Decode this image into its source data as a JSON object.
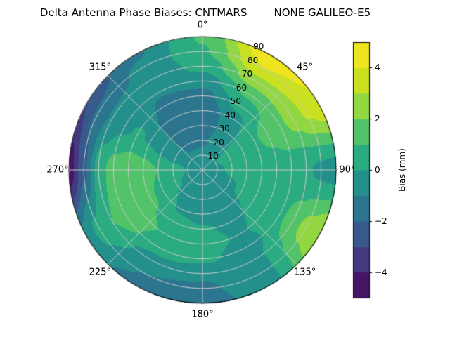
{
  "title": "Delta Antenna Phase Biases: CNTMARS        NONE GALILEO-E5",
  "chart_data": {
    "type": "heatmap",
    "projection": "polar",
    "title": "Delta Antenna Phase Biases: CNTMARS        NONE GALILEO-E5",
    "angular_ticks": [
      {
        "angle": 0,
        "label": "0°"
      },
      {
        "angle": 45,
        "label": "45°"
      },
      {
        "angle": 90,
        "label": "90°"
      },
      {
        "angle": 135,
        "label": "135°"
      },
      {
        "angle": 180,
        "label": "180°"
      },
      {
        "angle": 225,
        "label": "225°"
      },
      {
        "angle": 270,
        "label": "270°"
      },
      {
        "angle": 315,
        "label": "315°"
      }
    ],
    "radial_ticks": [
      10,
      20,
      30,
      40,
      50,
      60,
      70,
      80,
      90
    ],
    "radial_label_angle": 22.5,
    "colorbar": {
      "label": "Bias (mm)",
      "min": -5,
      "max": 5,
      "ticks": [
        -4,
        -2,
        0,
        2,
        4
      ],
      "band_step": 1
    },
    "colormap": {
      "name": "viridis",
      "stops": [
        "#440154",
        "#482878",
        "#3e4989",
        "#31688e",
        "#26828e",
        "#1f9e89",
        "#35b779",
        "#6ece58",
        "#b5de2b",
        "#dfe318",
        "#fde725"
      ]
    },
    "grid_color": "#cccccc",
    "azimuth_deg": [
      0,
      30,
      60,
      90,
      120,
      150,
      180,
      210,
      240,
      270,
      300,
      330
    ],
    "zenith_deg": [
      0,
      10,
      20,
      30,
      40,
      50,
      60,
      70,
      80,
      90
    ],
    "bias_mm": [
      [
        -0.4,
        -0.4,
        -0.4,
        -0.4,
        -0.4,
        -0.4,
        -0.4,
        -0.4,
        -0.4,
        -0.4,
        -0.4,
        -0.4
      ],
      [
        -0.7,
        -0.3,
        0.0,
        -0.1,
        -0.2,
        -0.4,
        -0.5,
        -0.4,
        -0.2,
        0.0,
        -0.4,
        -0.7
      ],
      [
        -1.2,
        -0.4,
        0.2,
        0.1,
        -0.1,
        -0.4,
        -0.5,
        -0.4,
        0.1,
        0.4,
        -0.5,
        -1.3
      ],
      [
        -1.7,
        -0.6,
        0.5,
        0.3,
        0.1,
        -0.4,
        -0.4,
        -0.1,
        0.6,
        1.0,
        -0.4,
        -1.7
      ],
      [
        -1.9,
        -0.4,
        0.9,
        0.5,
        0.3,
        -0.2,
        0.1,
        0.5,
        1.2,
        1.5,
        -0.1,
        -1.8
      ],
      [
        -1.4,
        0.3,
        1.3,
        0.5,
        0.5,
        -0.1,
        0.4,
        0.9,
        1.5,
        1.8,
        0.1,
        -1.3
      ],
      [
        -0.6,
        1.2,
        1.8,
        0.4,
        0.8,
        -0.4,
        0.2,
        0.6,
        1.4,
        1.5,
        -0.2,
        -0.9
      ],
      [
        0.3,
        2.6,
        2.4,
        0.1,
        1.6,
        -0.2,
        -0.8,
        -0.6,
        1.0,
        0.6,
        -0.8,
        -0.7
      ],
      [
        0.9,
        4.0,
        3.2,
        -0.2,
        2.4,
        -0.3,
        -1.2,
        -1.0,
        0.3,
        -2.2,
        -1.8,
        -0.8
      ],
      [
        1.1,
        4.8,
        3.8,
        -0.4,
        3.0,
        -0.4,
        -1.5,
        -1.3,
        -0.6,
        -4.6,
        -3.0,
        -1.1
      ]
    ]
  }
}
